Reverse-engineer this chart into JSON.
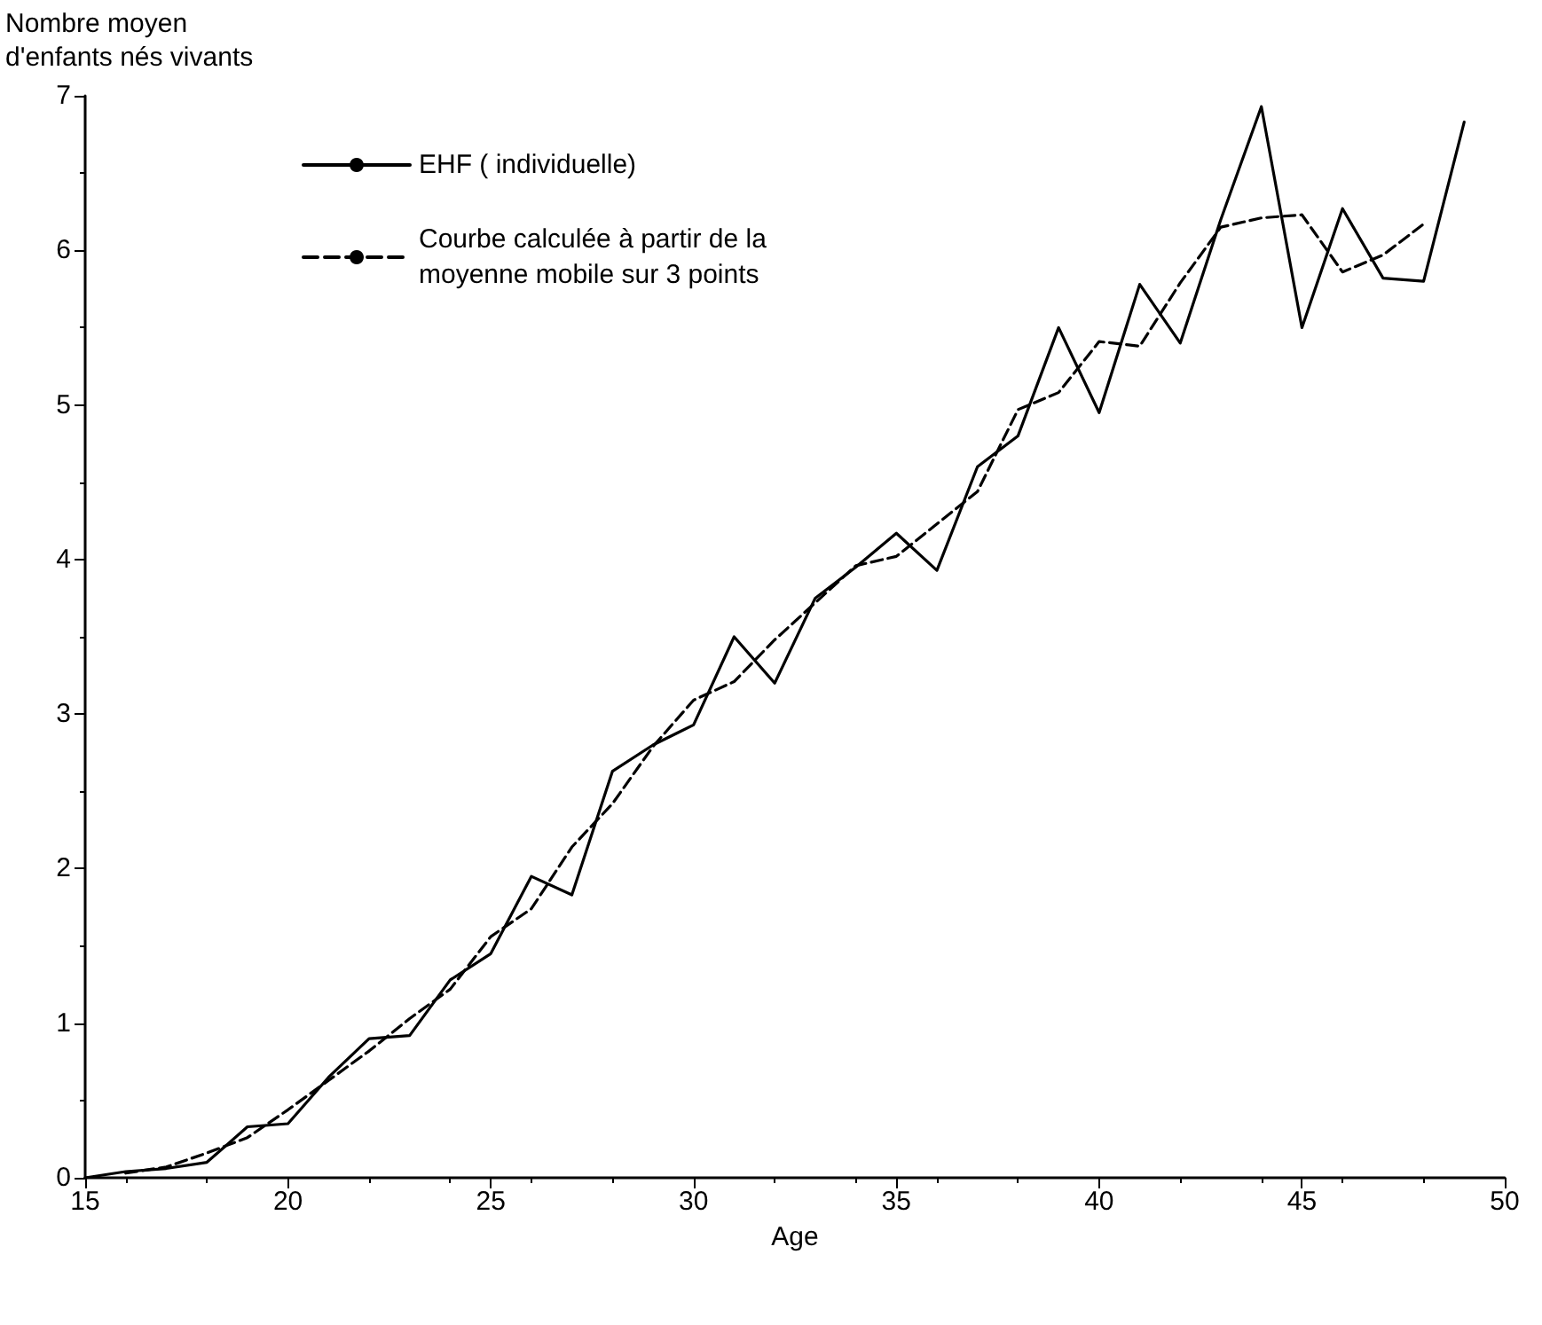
{
  "chart_data": {
    "type": "line",
    "xlabel": "Age",
    "ylabel": "Nombre moyen\nd'enfants nés vivants",
    "xlim": [
      15,
      50
    ],
    "xticks": [
      15,
      20,
      25,
      30,
      35,
      40,
      45,
      50
    ],
    "ylim": [
      0,
      7
    ],
    "yticks": [
      0,
      1,
      2,
      3,
      4,
      5,
      6,
      7
    ],
    "grid": false,
    "legend": "top left",
    "marker": "none",
    "series": [
      {
        "name": "EHF ( individuelle)",
        "color": "#000000",
        "line_style": "solid",
        "x": [
          15,
          16,
          17,
          18,
          19,
          20,
          21,
          22,
          23,
          24,
          25,
          26,
          27,
          28,
          29,
          30,
          31,
          32,
          33,
          34,
          35,
          36,
          37,
          38,
          39,
          40,
          41,
          42,
          43,
          44,
          45,
          46,
          47,
          48,
          49
        ],
        "values": [
          0.0,
          0.04,
          0.06,
          0.1,
          0.33,
          0.35,
          0.65,
          0.9,
          0.92,
          1.28,
          1.45,
          1.95,
          1.83,
          2.63,
          2.8,
          2.93,
          3.5,
          3.2,
          3.75,
          3.95,
          4.17,
          3.93,
          4.6,
          4.8,
          5.5,
          4.95,
          5.78,
          5.4,
          6.2,
          6.93,
          5.5,
          6.27,
          5.82,
          5.8,
          6.83
        ]
      },
      {
        "name": "Courbe calculée à partir de la moyenne mobile sur 3 points",
        "color": "#000000",
        "line_style": "dashed",
        "x": [
          16,
          17,
          18,
          19,
          20,
          21,
          22,
          23,
          24,
          25,
          26,
          27,
          28,
          29,
          30,
          31,
          32,
          33,
          34,
          35,
          36,
          37,
          38,
          39,
          40,
          41,
          42,
          43,
          44,
          45,
          46,
          47,
          48
        ],
        "values": [
          0.03,
          0.07,
          0.16,
          0.26,
          0.44,
          0.63,
          0.82,
          1.03,
          1.22,
          1.56,
          1.74,
          2.14,
          2.42,
          2.79,
          3.09,
          3.21,
          3.48,
          3.72,
          3.96,
          4.02,
          4.23,
          4.44,
          4.97,
          5.08,
          5.41,
          5.38,
          5.79,
          6.15,
          6.21,
          6.23,
          5.86,
          5.97,
          6.17
        ]
      }
    ]
  }
}
